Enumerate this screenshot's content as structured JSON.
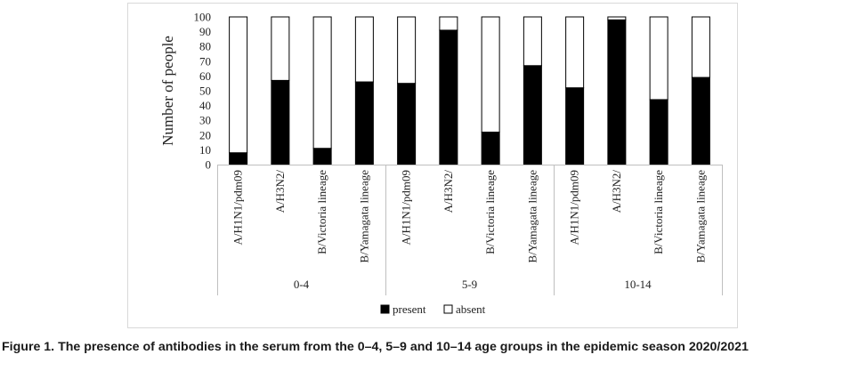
{
  "chart_data": {
    "type": "bar",
    "stacked": true,
    "ylabel": "Number of people",
    "ylim": [
      0,
      100
    ],
    "yticks": [
      0,
      10,
      20,
      30,
      40,
      50,
      60,
      70,
      80,
      90,
      100
    ],
    "groups": [
      {
        "label": "0-4",
        "categories": [
          "A/H1N1/pdm09",
          "A/H3N2/",
          "B/Victoria lineage",
          "B/Yamagata lineage"
        ]
      },
      {
        "label": "5-9",
        "categories": [
          "A/H1N1/pdm09",
          "A/H3N2/",
          "B/Victoria lineage",
          "B/Yamagata lineage"
        ]
      },
      {
        "label": "10-14",
        "categories": [
          "A/H1N1/pdm09",
          "A/H3N2/",
          "B/Victoria lineage",
          "B/Yamagata lineage"
        ]
      }
    ],
    "series": [
      {
        "name": "present",
        "color": "#000000",
        "values": [
          8,
          57,
          11,
          56,
          55,
          91,
          22,
          67,
          52,
          98,
          44,
          59
        ]
      },
      {
        "name": "absent",
        "color": "#ffffff",
        "values": [
          92,
          43,
          89,
          44,
          45,
          9,
          78,
          33,
          48,
          2,
          56,
          41
        ]
      }
    ],
    "legend_position": "bottom",
    "grid": false
  },
  "caption": "Figure 1. The presence of antibodies in the serum from the 0–4, 5–9 and 10–14 age groups in the epidemic season 2020/2021"
}
